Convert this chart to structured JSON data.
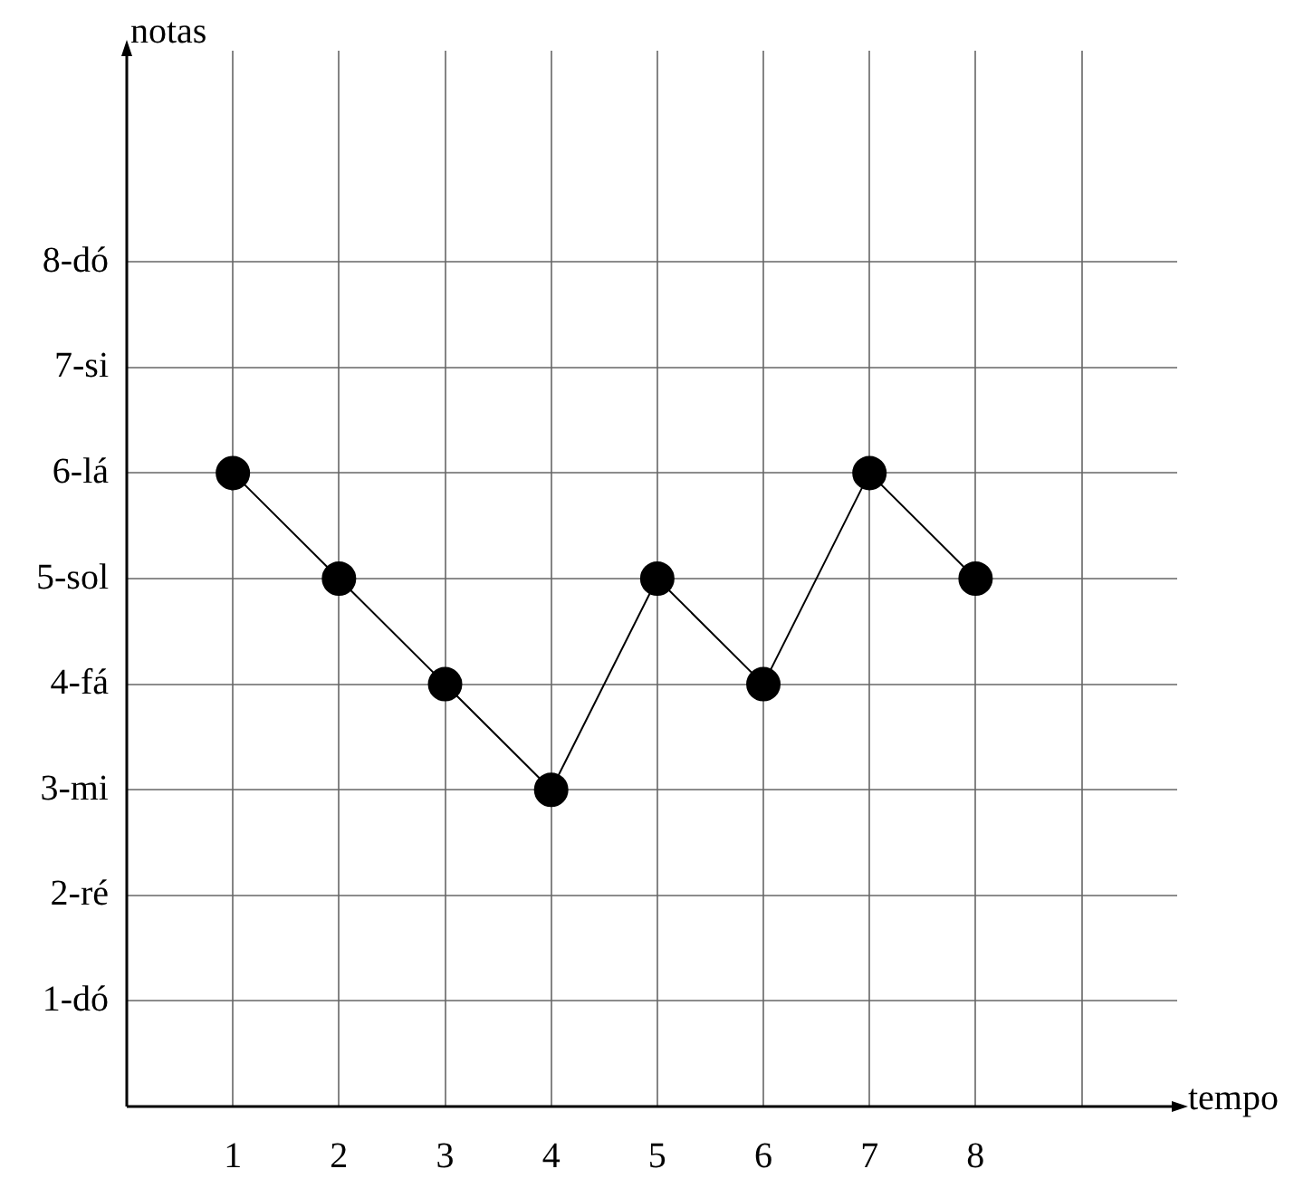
{
  "chart_data": {
    "type": "line",
    "xlabel": "tempo",
    "ylabel": "notas",
    "x": [
      1,
      2,
      3,
      4,
      5,
      6,
      7,
      8
    ],
    "series": [
      {
        "color": "#000000",
        "values": [
          6,
          5,
          4,
          3,
          5,
          4,
          6,
          5
        ]
      }
    ],
    "xlim": [
      0,
      9.9
    ],
    "ylim": [
      0,
      10
    ],
    "xticks": [
      1,
      2,
      3,
      4,
      5,
      6,
      7,
      8,
      {
        "value": 9,
        "label": null
      }
    ],
    "yticks": [
      {
        "value": 1,
        "label": "1-dó"
      },
      {
        "value": 2,
        "label": "2-ré"
      },
      {
        "value": 3,
        "label": "3-mi"
      },
      {
        "value": 4,
        "label": "4-fá"
      },
      {
        "value": 5,
        "label": "5-sol"
      },
      {
        "value": 6,
        "label": "6-lá"
      },
      {
        "value": 7,
        "label": "7-si"
      },
      {
        "value": 8,
        "label": "8-dó"
      }
    ],
    "grid": true,
    "legend": false,
    "marker": "circle",
    "line_style": "solid"
  }
}
